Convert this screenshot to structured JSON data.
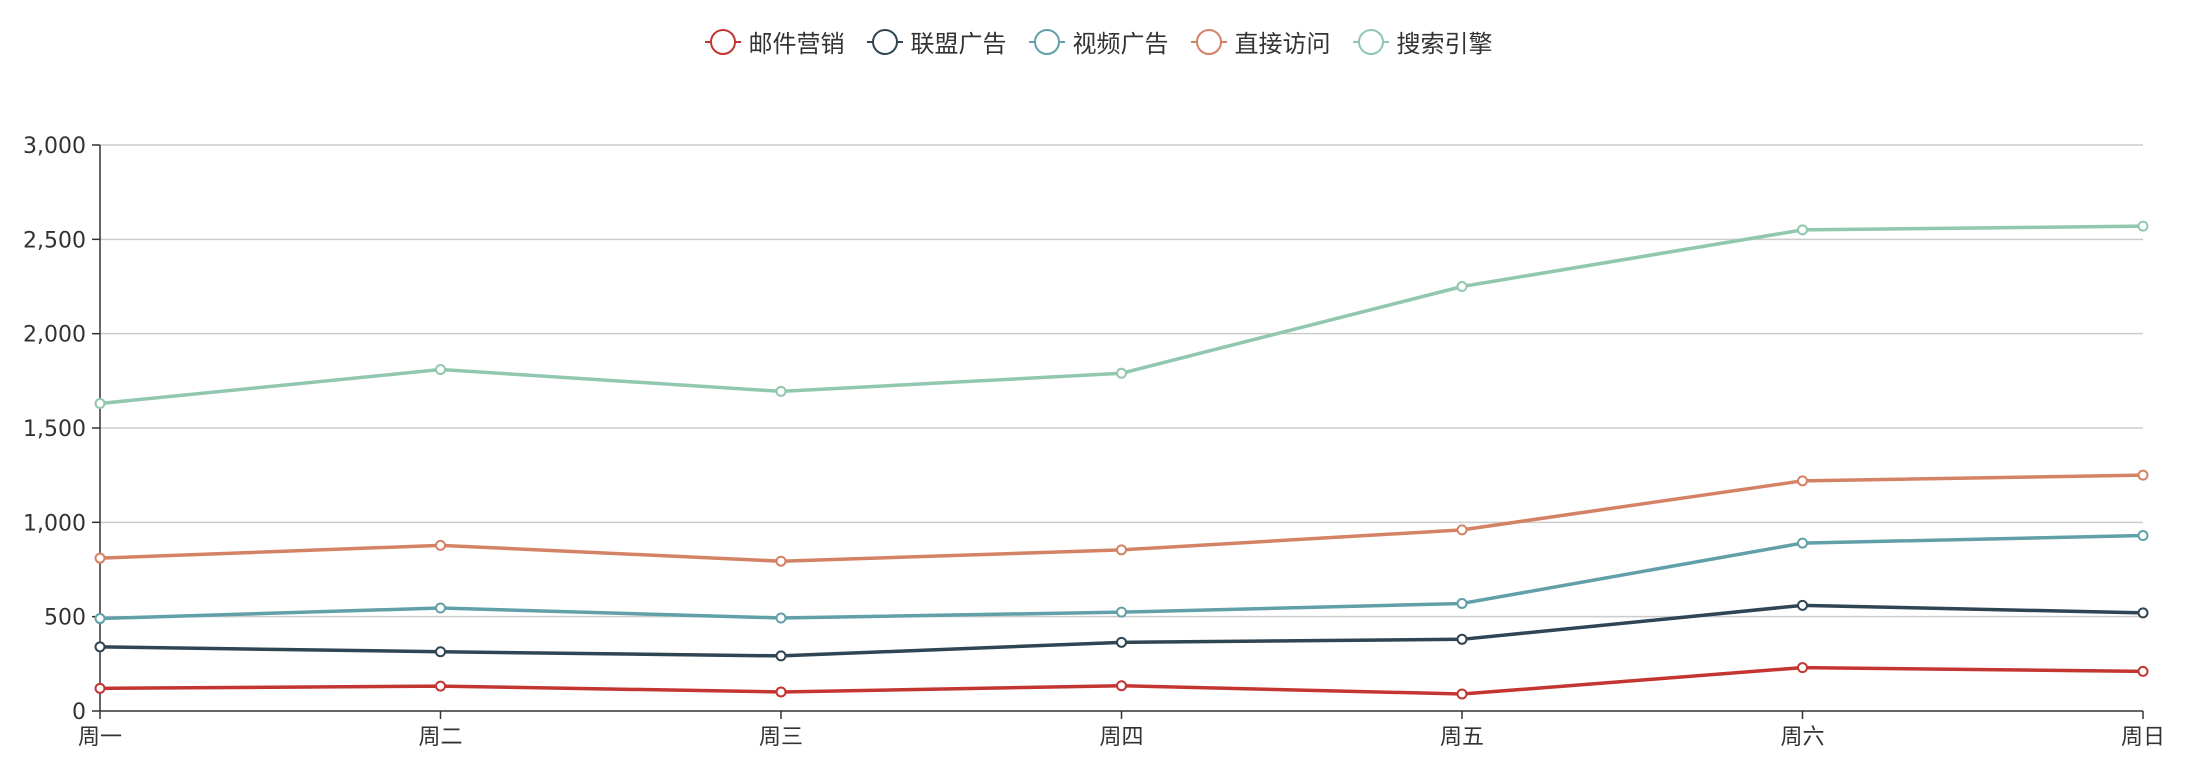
{
  "chart_data": {
    "type": "line",
    "categories": [
      "周一",
      "周二",
      "周三",
      "周四",
      "周五",
      "周六",
      "周日"
    ],
    "ylim": [
      0,
      3000
    ],
    "yticks": [
      0,
      500,
      1000,
      1500,
      2000,
      2500,
      3000
    ],
    "ytick_labels": [
      "0",
      "500",
      "1,000",
      "1,500",
      "2,000",
      "2,500",
      "3,000"
    ],
    "grid": true,
    "legend_position": "top-center",
    "series": [
      {
        "name": "邮件营销",
        "color": "#c23531",
        "values": [
          120,
          132,
          101,
          134,
          90,
          230,
          210
        ]
      },
      {
        "name": "联盟广告",
        "color": "#2f4554",
        "values": [
          340,
          314,
          292,
          364,
          380,
          560,
          520
        ]
      },
      {
        "name": "视频广告",
        "color": "#61a0a8",
        "values": [
          490,
          546,
          493,
          524,
          570,
          890,
          930
        ]
      },
      {
        "name": "直接访问",
        "color": "#d48265",
        "values": [
          810,
          878,
          794,
          854,
          960,
          1220,
          1250
        ]
      },
      {
        "name": "搜索引擎",
        "color": "#91c7ae",
        "values": [
          1630,
          1810,
          1694,
          1790,
          2250,
          2550,
          2570
        ]
      }
    ]
  }
}
